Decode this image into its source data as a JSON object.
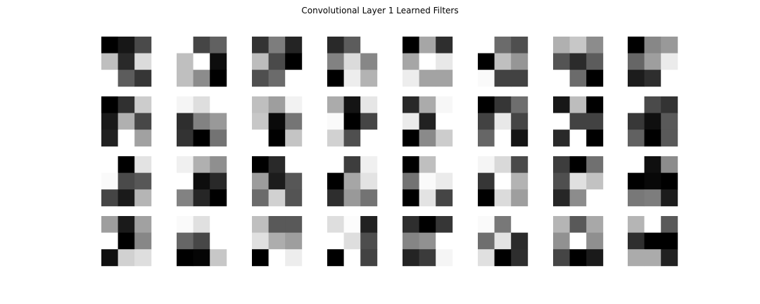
{
  "title": "Convolutional Layer 1 Learned Filters",
  "chart_data": {
    "type": "heatmap",
    "title": "Convolutional Layer 1 Learned Filters",
    "colormap": "gray",
    "color_scale": "0 = black, 1 = white",
    "grid_rows": 4,
    "grid_cols": 8,
    "kernel_size": [
      3,
      3
    ],
    "axes_visible": false,
    "filters": [
      [
        [
          0.0,
          0.09,
          0.29
        ],
        [
          0.75,
          0.16,
          0.86
        ],
        [
          1.0,
          0.36,
          0.21
        ]
      ],
      [
        [
          1.0,
          0.27,
          0.38
        ],
        [
          0.75,
          1.0,
          0.05
        ],
        [
          0.75,
          0.55,
          0.0
        ]
      ],
      [
        [
          0.2,
          0.49,
          0.14
        ],
        [
          0.74,
          0.29,
          0.0
        ],
        [
          0.31,
          0.42,
          1.0
        ]
      ],
      [
        [
          0.16,
          0.36,
          1.0
        ],
        [
          0.51,
          0.86,
          0.53
        ],
        [
          0.0,
          0.93,
          0.7
        ]
      ],
      [
        [
          0.0,
          0.65,
          0.18
        ],
        [
          0.65,
          1.0,
          0.91
        ],
        [
          0.93,
          0.64,
          0.64
        ]
      ],
      [
        [
          1.0,
          0.42,
          0.31
        ],
        [
          0.0,
          0.75,
          0.59
        ],
        [
          0.98,
          0.26,
          0.26
        ]
      ],
      [
        [
          0.69,
          0.78,
          0.55
        ],
        [
          0.33,
          0.17,
          0.36
        ],
        [
          1.0,
          0.42,
          0.0
        ]
      ],
      [
        [
          0.0,
          0.53,
          0.6
        ],
        [
          0.4,
          0.62,
          0.92
        ],
        [
          0.11,
          0.18,
          1.0
        ]
      ],
      [
        [
          0.0,
          0.19,
          0.8
        ],
        [
          0.1,
          0.69,
          0.28
        ],
        [
          0.13,
          1.0,
          0.63
        ]
      ],
      [
        [
          0.96,
          0.87,
          1.0
        ],
        [
          0.18,
          0.51,
          0.6
        ],
        [
          0.2,
          0.0,
          0.45
        ]
      ],
      [
        [
          0.75,
          0.62,
          0.95
        ],
        [
          0.78,
          0.04,
          0.46
        ],
        [
          1.0,
          0.0,
          0.77
        ]
      ],
      [
        [
          0.67,
          0.08,
          0.9
        ],
        [
          0.98,
          0.0,
          0.27
        ],
        [
          0.82,
          0.31,
          1.0
        ]
      ],
      [
        [
          0.16,
          0.67,
          0.97
        ],
        [
          0.92,
          0.13,
          1.0
        ],
        [
          0.0,
          0.54,
          0.8
        ]
      ],
      [
        [
          0.0,
          0.21,
          0.43
        ],
        [
          0.26,
          0.91,
          0.27
        ],
        [
          0.4,
          1.0,
          0.08
        ]
      ],
      [
        [
          0.09,
          0.74,
          0.0
        ],
        [
          1.0,
          0.26,
          0.26
        ],
        [
          0.16,
          1.0,
          0.0
        ]
      ],
      [
        [
          1.0,
          0.29,
          0.2
        ],
        [
          0.22,
          0.06,
          0.35
        ],
        [
          0.38,
          0.0,
          0.35
        ]
      ],
      [
        [
          1.0,
          0.0,
          0.89
        ],
        [
          0.98,
          0.29,
          0.34
        ],
        [
          0.27,
          0.1,
          0.71
        ]
      ],
      [
        [
          0.94,
          0.69,
          0.56
        ],
        [
          1.0,
          0.05,
          0.16
        ],
        [
          0.51,
          0.15,
          0.0
        ]
      ],
      [
        [
          0.0,
          0.16,
          1.0
        ],
        [
          0.61,
          0.11,
          0.34
        ],
        [
          0.42,
          0.82,
          0.33
        ]
      ],
      [
        [
          1.0,
          0.24,
          0.94
        ],
        [
          0.0,
          0.65,
          0.89
        ],
        [
          0.18,
          0.6,
          0.45
        ]
      ],
      [
        [
          0.0,
          0.75,
          1.0
        ],
        [
          0.45,
          0.98,
          0.92
        ],
        [
          0.0,
          0.89,
          0.27
        ]
      ],
      [
        [
          0.96,
          0.85,
          0.29
        ],
        [
          0.21,
          1.0,
          0.7
        ],
        [
          0.0,
          0.86,
          0.62
        ]
      ],
      [
        [
          0.24,
          0.0,
          0.44
        ],
        [
          0.31,
          0.88,
          0.76
        ],
        [
          0.15,
          0.55,
          1.0
        ]
      ],
      [
        [
          1.0,
          0.06,
          0.55
        ],
        [
          0.0,
          0.03,
          0.0
        ],
        [
          0.47,
          0.49,
          0.11
        ]
      ],
      [
        [
          0.62,
          0.1,
          0.63
        ],
        [
          1.0,
          0.0,
          0.53
        ],
        [
          0.06,
          0.82,
          0.87
        ]
      ],
      [
        [
          0.98,
          0.88,
          1.0
        ],
        [
          0.4,
          0.28,
          1.0
        ],
        [
          0.0,
          0.02,
          0.78
        ]
      ],
      [
        [
          0.75,
          0.35,
          0.35
        ],
        [
          0.88,
          0.68,
          0.62
        ],
        [
          0.0,
          1.0,
          0.93
        ]
      ],
      [
        [
          0.87,
          0.99,
          0.13
        ],
        [
          1.0,
          0.87,
          0.3
        ],
        [
          0.0,
          1.0,
          0.26
        ]
      ],
      [
        [
          0.18,
          0.0,
          0.21
        ],
        [
          0.52,
          0.57,
          1.0
        ],
        [
          0.14,
          0.23,
          0.96
        ]
      ],
      [
        [
          0.98,
          0.47,
          1.0
        ],
        [
          0.43,
          0.89,
          0.17
        ],
        [
          0.88,
          0.0,
          0.18
        ]
      ],
      [
        [
          0.71,
          0.35,
          0.66
        ],
        [
          0.57,
          1.0,
          0.56
        ],
        [
          0.27,
          0.0,
          0.1
        ]
      ],
      [
        [
          0.71,
          1.0,
          0.35
        ],
        [
          0.18,
          0.0,
          0.0
        ],
        [
          0.67,
          0.67,
          0.13
        ]
      ]
    ]
  }
}
